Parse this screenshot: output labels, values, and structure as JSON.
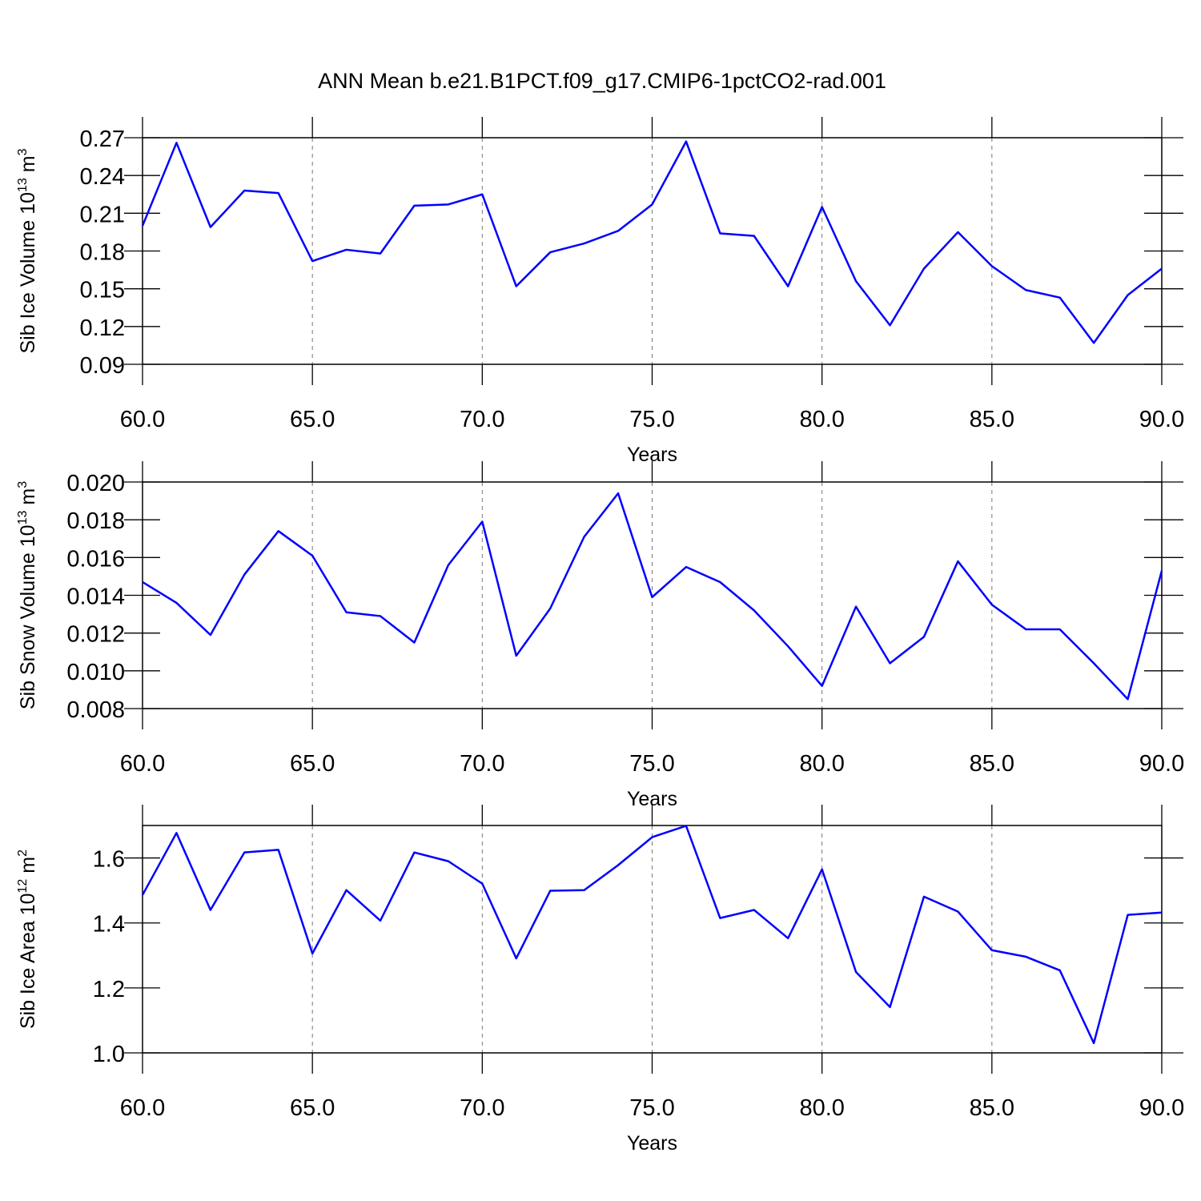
{
  "title": "ANN Mean b.e21.B1PCT.f09_g17.CMIP6-1pctCO2-rad.001",
  "chart_data": [
    {
      "type": "line",
      "ylabel": {
        "text": "Sib Ice Volume 10",
        "sup": "13",
        "unit": "m",
        "unit_sup": "3"
      },
      "xlabel": "Years",
      "x": [
        60,
        61,
        62,
        63,
        64,
        65,
        66,
        67,
        68,
        69,
        70,
        71,
        72,
        73,
        74,
        75,
        76,
        77,
        78,
        79,
        80,
        81,
        82,
        83,
        84,
        85,
        86,
        87,
        88,
        89,
        90
      ],
      "values": [
        0.2,
        0.266,
        0.199,
        0.228,
        0.226,
        0.172,
        0.181,
        0.178,
        0.216,
        0.217,
        0.225,
        0.152,
        0.179,
        0.186,
        0.196,
        0.217,
        0.267,
        0.194,
        0.192,
        0.152,
        0.215,
        0.156,
        0.121,
        0.166,
        0.195,
        0.168,
        0.149,
        0.143,
        0.107,
        0.145,
        0.166
      ],
      "color": "#0000ff",
      "xlim": [
        60,
        90
      ],
      "xticks": [
        {
          "value": 60,
          "label": "60.0"
        },
        {
          "value": 65,
          "label": "65.0"
        },
        {
          "value": 70,
          "label": "70.0"
        },
        {
          "value": 75,
          "label": "75.0"
        },
        {
          "value": 80,
          "label": "80.0"
        },
        {
          "value": 85,
          "label": "85.0"
        },
        {
          "value": 90,
          "label": "90.0"
        }
      ],
      "ylim": [
        0.09,
        0.27
      ],
      "yticks": [
        0.09,
        0.12,
        0.15,
        0.18,
        0.21,
        0.24,
        0.27
      ],
      "grid": true
    },
    {
      "type": "line",
      "ylabel": {
        "text": "Sib Snow Volume 10",
        "sup": "13",
        "unit": "m",
        "unit_sup": "3"
      },
      "xlabel": "Years",
      "x": [
        60,
        61,
        62,
        63,
        64,
        65,
        66,
        67,
        68,
        69,
        70,
        71,
        72,
        73,
        74,
        75,
        76,
        77,
        78,
        79,
        80,
        81,
        82,
        83,
        84,
        85,
        86,
        87,
        88,
        89,
        90
      ],
      "values": [
        0.0147,
        0.0136,
        0.0119,
        0.0151,
        0.0174,
        0.0161,
        0.0131,
        0.0129,
        0.0115,
        0.0156,
        0.0179,
        0.0108,
        0.0133,
        0.0171,
        0.0194,
        0.0139,
        0.0155,
        0.0147,
        0.0132,
        0.0113,
        0.0092,
        0.0134,
        0.0104,
        0.0118,
        0.0158,
        0.0135,
        0.0122,
        0.0122,
        0.0104,
        0.0085,
        0.0153
      ],
      "color": "#0000ff",
      "xlim": [
        60,
        90
      ],
      "xticks": [
        {
          "value": 60,
          "label": "60.0"
        },
        {
          "value": 65,
          "label": "65.0"
        },
        {
          "value": 70,
          "label": "70.0"
        },
        {
          "value": 75,
          "label": "75.0"
        },
        {
          "value": 80,
          "label": "80.0"
        },
        {
          "value": 85,
          "label": "85.0"
        },
        {
          "value": 90,
          "label": "90.0"
        }
      ],
      "ylim": [
        0.008,
        0.02
      ],
      "yticks": [
        0.008,
        {
          "value": 0.01,
          "label": "0.010"
        },
        0.012,
        0.014,
        0.016,
        0.018,
        {
          "value": 0.02,
          "label": "0.020"
        }
      ],
      "grid": true
    },
    {
      "type": "line",
      "ylabel": {
        "text": "Sib Ice Area 10",
        "sup": "12",
        "unit": "m",
        "unit_sup": "2"
      },
      "xlabel": "Years",
      "x": [
        60,
        61,
        62,
        63,
        64,
        65,
        66,
        67,
        68,
        69,
        70,
        71,
        72,
        73,
        74,
        75,
        76,
        77,
        78,
        79,
        80,
        81,
        82,
        83,
        84,
        85,
        86,
        87,
        88,
        89,
        90
      ],
      "values": [
        1.486,
        1.677,
        1.44,
        1.617,
        1.625,
        1.306,
        1.501,
        1.407,
        1.617,
        1.59,
        1.521,
        1.291,
        1.499,
        1.501,
        1.578,
        1.664,
        1.699,
        1.415,
        1.44,
        1.353,
        1.565,
        1.249,
        1.141,
        1.481,
        1.435,
        1.316,
        1.296,
        1.254,
        1.03,
        1.425,
        1.432
      ],
      "color": "#0000ff",
      "xlim": [
        60,
        90
      ],
      "xticks": [
        {
          "value": 60,
          "label": "60.0"
        },
        {
          "value": 65,
          "label": "65.0"
        },
        {
          "value": 70,
          "label": "70.0"
        },
        {
          "value": 75,
          "label": "75.0"
        },
        {
          "value": 80,
          "label": "80.0"
        },
        {
          "value": 85,
          "label": "85.0"
        },
        {
          "value": 90,
          "label": "90.0"
        }
      ],
      "ylim": [
        1.0,
        1.7
      ],
      "yticks": [
        {
          "value": 1.0,
          "label": "1.0"
        },
        1.2,
        1.4,
        1.6
      ],
      "grid": true
    }
  ]
}
